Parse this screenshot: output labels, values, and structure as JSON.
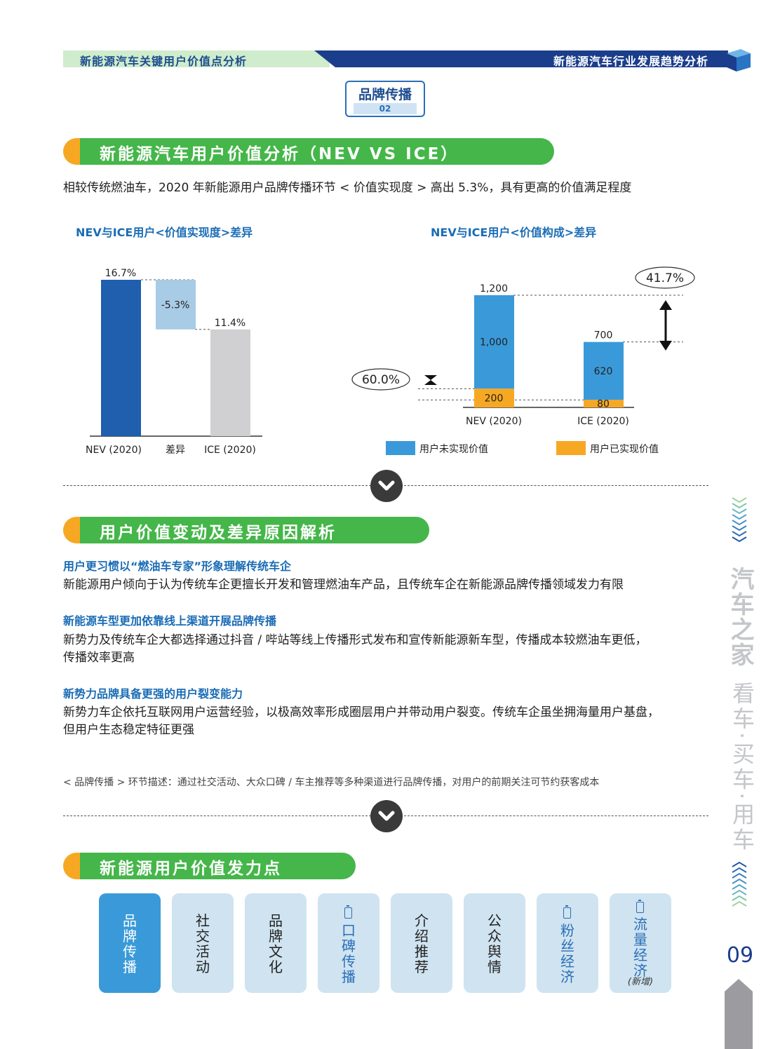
{
  "header": {
    "left_title": "新能源汽车关键用户价值点分析",
    "right_title": "新能源汽车行业发展趋势分析"
  },
  "badge": {
    "title": "品牌传播",
    "number": "02"
  },
  "section1": {
    "title": "新能源汽车用户价值分析（NEV VS ICE）",
    "description": "相较传统燃油车，2020 年新能源用户品牌传播环节 < 价值实现度 > 高出 5.3%，具有更高的价值满足程度"
  },
  "chart_data": [
    {
      "type": "bar",
      "title": "NEV与ICE用户<价值实现度>差异",
      "categories": [
        "NEV (2020)",
        "差异",
        "ICE (2020)"
      ],
      "values": [
        16.7,
        -5.3,
        11.4
      ],
      "value_labels": [
        "16.7%",
        "-5.3%",
        "11.4%"
      ],
      "colors": [
        "#1f5fae",
        "#a8cbe6",
        "#d0d0d2"
      ]
    },
    {
      "type": "bar",
      "title": "NEV与ICE用户<价值构成>差异",
      "categories": [
        "NEV (2020)",
        "ICE (2020)"
      ],
      "totals": [
        1200,
        700
      ],
      "total_labels": [
        "1,200",
        "700"
      ],
      "series": [
        {
          "name": "用户已实现价值",
          "values": [
            200,
            80
          ],
          "labels": [
            "200",
            "80"
          ],
          "color": "#f7a823"
        },
        {
          "name": "用户未实现价值",
          "values": [
            1000,
            620
          ],
          "labels": [
            "1,000",
            "620"
          ],
          "color": "#3a9ad9"
        }
      ],
      "annotations": [
        "60.0%",
        "41.7%"
      ]
    }
  ],
  "section2": {
    "title": "用户价值变动及差异原因解析",
    "points": [
      {
        "heading": "用户更习惯以“燃油车专家”形象理解传统车企",
        "lines": [
          "新能源用户倾向于认为传统车企更擅长开发和管理燃油车产品，且传统车企在新能源品牌传播领域发力有限"
        ]
      },
      {
        "heading": "新能源车型更加依靠线上渠道开展品牌传播",
        "lines": [
          "新势力及传统车企大都选择通过抖音 / 哔站等线上传播形式发布和宣传新能源新车型，传播成本较燃油车更低，",
          "传播效率更高"
        ]
      },
      {
        "heading": "新势力品牌具备更强的用户裂变能力",
        "lines": [
          "新势力车企依托互联网用户运营经验，以极高效率形成圈层用户并带动用户裂变。传统车企虽坐拥海量用户基盘，",
          "但用户生态稳定特征更强"
        ]
      }
    ],
    "footnote": "< 品牌传播 > 环节描述：通过社交活动、大众口碑 / 车主推荐等多种渠道进行品牌传播，对用户的前期关注可节约获客成本"
  },
  "section3": {
    "title": "新能源用户价值发力点",
    "tiles": [
      {
        "chars": [
          "品",
          "牌",
          "传",
          "播"
        ],
        "state": "active"
      },
      {
        "chars": [
          "社",
          "交",
          "活",
          "动"
        ],
        "state": "normal"
      },
      {
        "chars": [
          "品",
          "牌",
          "文",
          "化"
        ],
        "state": "normal"
      },
      {
        "chars": [
          "口",
          "碑",
          "传",
          "播"
        ],
        "state": "highlight"
      },
      {
        "chars": [
          "介",
          "绍",
          "推",
          "荐"
        ],
        "state": "normal"
      },
      {
        "chars": [
          "公",
          "众",
          "舆",
          "情"
        ],
        "state": "normal"
      },
      {
        "chars": [
          "粉",
          "丝",
          "经",
          "济"
        ],
        "state": "highlight"
      },
      {
        "chars": [
          "流",
          "量",
          "经",
          "济"
        ],
        "state": "highlight",
        "note": "(新增)"
      }
    ]
  },
  "sidebar": {
    "brand": "汽车之家",
    "slogan": "看车·买车·用车",
    "page_number": "09"
  }
}
